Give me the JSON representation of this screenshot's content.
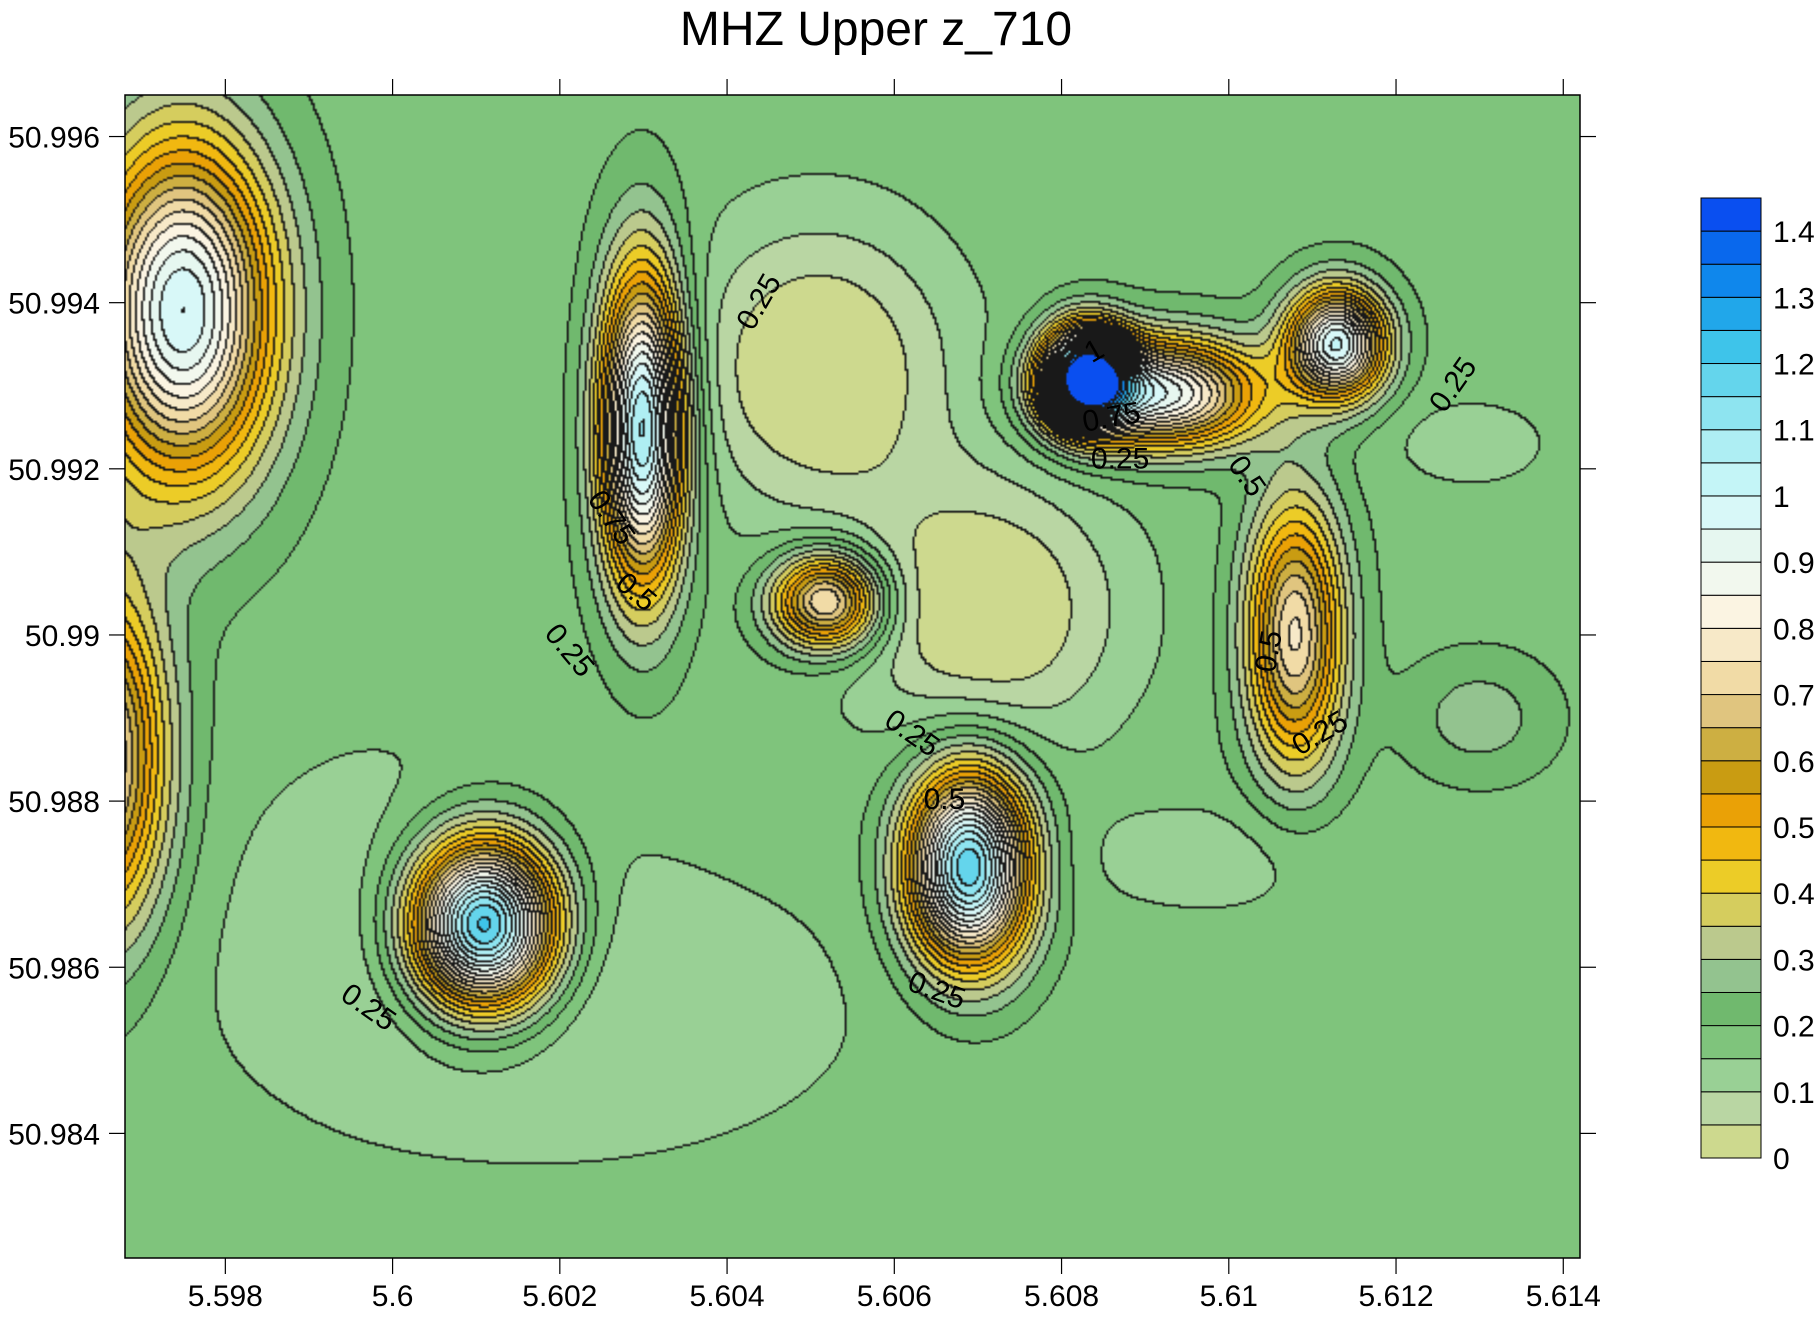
{
  "chart_data": {
    "type": "contour",
    "title": "MHZ Upper z_710",
    "xlabel": "",
    "ylabel": "",
    "xlim": [
      5.5968,
      5.6142
    ],
    "ylim": [
      50.9825,
      50.9965
    ],
    "x_ticks": [
      {
        "value": 5.598,
        "label": "5.598"
      },
      {
        "value": 5.6,
        "label": "5.6"
      },
      {
        "value": 5.602,
        "label": "5.602"
      },
      {
        "value": 5.604,
        "label": "5.604"
      },
      {
        "value": 5.606,
        "label": "5.606"
      },
      {
        "value": 5.608,
        "label": "5.608"
      },
      {
        "value": 5.61,
        "label": "5.61"
      },
      {
        "value": 5.612,
        "label": "5.612"
      },
      {
        "value": 5.614,
        "label": "5.614"
      }
    ],
    "y_ticks": [
      {
        "value": 50.996,
        "label": "50.996"
      },
      {
        "value": 50.994,
        "label": "50.994"
      },
      {
        "value": 50.992,
        "label": "50.992"
      },
      {
        "value": 50.99,
        "label": "50.99"
      },
      {
        "value": 50.988,
        "label": "50.988"
      },
      {
        "value": 50.986,
        "label": "50.986"
      },
      {
        "value": 50.984,
        "label": "50.984"
      }
    ],
    "background_value": 0.18,
    "features": [
      {
        "x": 5.5975,
        "y": 50.9939,
        "peak": 0.82,
        "sx": 0.00075,
        "sy": 0.0014,
        "rot": 0.2
      },
      {
        "x": 5.603,
        "y": 50.9925,
        "peak": 0.95,
        "sx": 0.00035,
        "sy": 0.0013,
        "rot": 0.25
      },
      {
        "x": 5.6052,
        "y": 50.9904,
        "peak": 0.62,
        "sx": 0.00045,
        "sy": 0.0004,
        "rot": 0
      },
      {
        "x": 5.6083,
        "y": 50.9931,
        "peak": 1.25,
        "sx": 0.00035,
        "sy": 0.0004,
        "rot": 0
      },
      {
        "x": 5.6092,
        "y": 50.9929,
        "peak": 0.75,
        "sx": 0.0008,
        "sy": 0.00045,
        "rot": 0
      },
      {
        "x": 5.6113,
        "y": 50.9935,
        "peak": 0.82,
        "sx": 0.0004,
        "sy": 0.00045,
        "rot": 0
      },
      {
        "x": 5.6108,
        "y": 50.99,
        "peak": 0.58,
        "sx": 0.0004,
        "sy": 0.0011,
        "rot": 0
      },
      {
        "x": 5.5965,
        "y": 50.9885,
        "peak": 0.62,
        "sx": 0.00055,
        "sy": 0.0014,
        "rot": 0
      },
      {
        "x": 5.6011,
        "y": 50.9865,
        "peak": 1.12,
        "sx": 0.0006,
        "sy": 0.0007,
        "rot": 0
      },
      {
        "x": 5.6069,
        "y": 50.9872,
        "peak": 1.02,
        "sx": 0.0005,
        "sy": 0.0008,
        "rot": 0
      },
      {
        "x": 5.6051,
        "y": 50.9932,
        "peak": -0.2,
        "sx": 0.0011,
        "sy": 0.0012,
        "rot": 0
      },
      {
        "x": 5.6071,
        "y": 50.9903,
        "peak": -0.2,
        "sx": 0.0011,
        "sy": 0.0011,
        "rot": 0
      },
      {
        "x": 5.602,
        "y": 50.9855,
        "peak": -0.08,
        "sx": 0.0025,
        "sy": 0.0013,
        "rot": 0
      },
      {
        "x": 5.613,
        "y": 50.989,
        "peak": 0.1,
        "sx": 0.0006,
        "sy": 0.0005,
        "rot": 0
      },
      {
        "x": 5.6129,
        "y": 50.9923,
        "peak": -0.06,
        "sx": 0.0007,
        "sy": 0.0004,
        "rot": 0
      },
      {
        "x": 5.6098,
        "y": 50.9873,
        "peak": -0.06,
        "sx": 0.0012,
        "sy": 0.0005,
        "rot": 0
      },
      {
        "x": 5.6,
        "y": 50.987,
        "peak": -0.05,
        "sx": 0.0015,
        "sy": 0.0015,
        "rot": 0
      }
    ],
    "contour_labels": [
      {
        "text": "0.25",
        "x": 5.6044,
        "y": 50.994,
        "angle": -60
      },
      {
        "text": "0.75",
        "x": 5.6026,
        "y": 50.9914,
        "angle": 55
      },
      {
        "text": "0.5",
        "x": 5.6029,
        "y": 50.9905,
        "angle": 40
      },
      {
        "text": "0.25",
        "x": 5.6021,
        "y": 50.9898,
        "angle": 50
      },
      {
        "text": "1",
        "x": 5.6084,
        "y": 50.9934,
        "angle": -30
      },
      {
        "text": "0.75",
        "x": 5.6086,
        "y": 50.9926,
        "angle": -10
      },
      {
        "text": "0.25",
        "x": 5.6087,
        "y": 50.9921,
        "angle": 0
      },
      {
        "text": "0.5",
        "x": 5.6102,
        "y": 50.9919,
        "angle": 55
      },
      {
        "text": "0.5",
        "x": 5.6105,
        "y": 50.9898,
        "angle": -80
      },
      {
        "text": "0.25",
        "x": 5.6111,
        "y": 50.9888,
        "angle": -30
      },
      {
        "text": "0.25",
        "x": 5.6127,
        "y": 50.993,
        "angle": -55
      },
      {
        "text": "0.25",
        "x": 5.6062,
        "y": 50.9888,
        "angle": 35
      },
      {
        "text": "0.5",
        "x": 5.6066,
        "y": 50.988,
        "angle": 0
      },
      {
        "text": "0.25",
        "x": 5.6065,
        "y": 50.9857,
        "angle": 20
      },
      {
        "text": "0.25",
        "x": 5.5997,
        "y": 50.9855,
        "angle": 35
      }
    ],
    "colorbar": {
      "levels": [
        0,
        0.05,
        0.1,
        0.15,
        0.2,
        0.25,
        0.3,
        0.35,
        0.4,
        0.45,
        0.5,
        0.55,
        0.6,
        0.65,
        0.7,
        0.75,
        0.8,
        0.85,
        0.9,
        0.95,
        1,
        1.05,
        1.1,
        1.15,
        1.2,
        1.25,
        1.3,
        1.35,
        1.4,
        1.45
      ],
      "colors": [
        "#cdd98e",
        "#b9d6a3",
        "#99d095",
        "#7fc47c",
        "#70b96e",
        "#93c38f",
        "#bbc98d",
        "#d5cd5e",
        "#eccc27",
        "#f1b810",
        "#eaa106",
        "#c99c12",
        "#cdaf42",
        "#e0c57f",
        "#f1dba6",
        "#f7e9c8",
        "#fbf4e2",
        "#f2f8ee",
        "#e6f7f0",
        "#d8f8f8",
        "#c4f5f7",
        "#aeeef3",
        "#8ee4f0",
        "#64d5ec",
        "#3ec4ea",
        "#21a7ea",
        "#0f87ec",
        "#0968ed",
        "#0a4ff0"
      ],
      "tick_labels": [
        {
          "value": 0,
          "label": "0"
        },
        {
          "value": 0.1,
          "label": "0.1"
        },
        {
          "value": 0.2,
          "label": "0.2"
        },
        {
          "value": 0.3,
          "label": "0.3"
        },
        {
          "value": 0.4,
          "label": "0.4"
        },
        {
          "value": 0.5,
          "label": "0.5"
        },
        {
          "value": 0.6,
          "label": "0.6"
        },
        {
          "value": 0.7,
          "label": "0.7"
        },
        {
          "value": 0.8,
          "label": "0.8"
        },
        {
          "value": 0.9,
          "label": "0.9"
        },
        {
          "value": 1,
          "label": "1"
        },
        {
          "value": 1.1,
          "label": "1.1"
        },
        {
          "value": 1.2,
          "label": "1.2"
        },
        {
          "value": 1.3,
          "label": "1.3"
        },
        {
          "value": 1.4,
          "label": "1.4"
        }
      ]
    }
  }
}
